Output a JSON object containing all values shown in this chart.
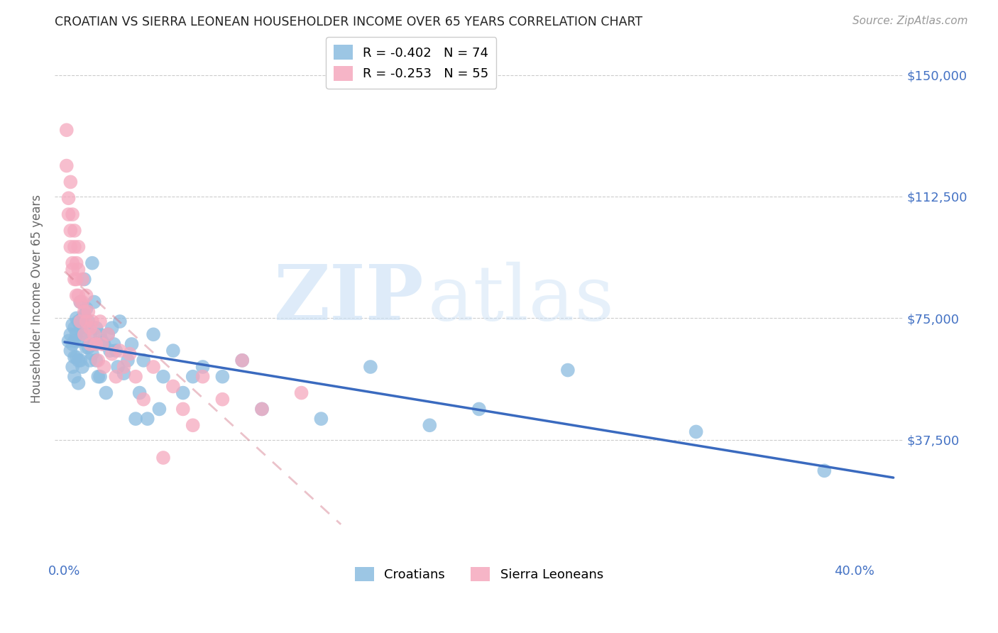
{
  "title": "CROATIAN VS SIERRA LEONEAN HOUSEHOLDER INCOME OVER 65 YEARS CORRELATION CHART",
  "source": "Source: ZipAtlas.com",
  "ylabel": "Householder Income Over 65 years",
  "xlabel_ticks": [
    "0.0%",
    "",
    "",
    "",
    "",
    "",
    "",
    "",
    "40.0%"
  ],
  "xlabel_vals": [
    0.0,
    0.05,
    0.1,
    0.15,
    0.2,
    0.25,
    0.3,
    0.35,
    0.4
  ],
  "ytick_labels": [
    "$37,500",
    "$75,000",
    "$112,500",
    "$150,000"
  ],
  "ytick_vals": [
    37500,
    75000,
    112500,
    150000
  ],
  "ylim": [
    0,
    162000
  ],
  "xlim": [
    -0.005,
    0.425
  ],
  "croatian_R": -0.402,
  "croatian_N": 74,
  "sierraleone_R": -0.253,
  "sierraleone_N": 55,
  "croatian_color": "#8bbce0",
  "sierraleone_color": "#f5a8be",
  "trendline_croatian_color": "#3a6abf",
  "trendline_sierraleone_color": "#d4788a",
  "watermark_zip": "ZIP",
  "watermark_atlas": "atlas",
  "background_color": "#ffffff",
  "grid_color": "#cccccc",
  "title_color": "#222222",
  "label_color": "#4472c4",
  "croatian_x": [
    0.002,
    0.003,
    0.003,
    0.004,
    0.004,
    0.004,
    0.005,
    0.005,
    0.005,
    0.005,
    0.006,
    0.006,
    0.006,
    0.007,
    0.007,
    0.007,
    0.007,
    0.008,
    0.008,
    0.008,
    0.009,
    0.009,
    0.009,
    0.01,
    0.01,
    0.011,
    0.011,
    0.012,
    0.012,
    0.013,
    0.013,
    0.014,
    0.014,
    0.015,
    0.015,
    0.016,
    0.016,
    0.017,
    0.018,
    0.018,
    0.019,
    0.02,
    0.021,
    0.022,
    0.023,
    0.024,
    0.025,
    0.026,
    0.027,
    0.028,
    0.03,
    0.032,
    0.034,
    0.036,
    0.038,
    0.04,
    0.042,
    0.045,
    0.048,
    0.05,
    0.055,
    0.06,
    0.065,
    0.07,
    0.08,
    0.09,
    0.1,
    0.13,
    0.155,
    0.185,
    0.21,
    0.255,
    0.32,
    0.385
  ],
  "croatian_y": [
    68000,
    70000,
    65000,
    73000,
    67000,
    60000,
    72000,
    68000,
    63000,
    57000,
    75000,
    70000,
    63000,
    74000,
    68000,
    62000,
    55000,
    80000,
    72000,
    62000,
    75000,
    70000,
    60000,
    87000,
    76000,
    78000,
    66000,
    74000,
    66000,
    70000,
    62000,
    92000,
    64000,
    80000,
    67000,
    72000,
    62000,
    57000,
    70000,
    57000,
    68000,
    67000,
    52000,
    70000,
    65000,
    72000,
    67000,
    65000,
    60000,
    74000,
    58000,
    62000,
    67000,
    44000,
    52000,
    62000,
    44000,
    70000,
    47000,
    57000,
    65000,
    52000,
    57000,
    60000,
    57000,
    62000,
    47000,
    44000,
    60000,
    42000,
    47000,
    59000,
    40000,
    28000
  ],
  "sierraleone_x": [
    0.001,
    0.001,
    0.002,
    0.002,
    0.003,
    0.003,
    0.003,
    0.004,
    0.004,
    0.004,
    0.005,
    0.005,
    0.005,
    0.006,
    0.006,
    0.006,
    0.007,
    0.007,
    0.007,
    0.008,
    0.008,
    0.009,
    0.009,
    0.01,
    0.01,
    0.011,
    0.011,
    0.012,
    0.013,
    0.013,
    0.014,
    0.015,
    0.016,
    0.017,
    0.018,
    0.019,
    0.02,
    0.022,
    0.024,
    0.026,
    0.028,
    0.03,
    0.033,
    0.036,
    0.04,
    0.045,
    0.05,
    0.055,
    0.06,
    0.065,
    0.07,
    0.08,
    0.09,
    0.1,
    0.12
  ],
  "sierraleone_y": [
    133000,
    122000,
    112000,
    107000,
    117000,
    102000,
    97000,
    92000,
    107000,
    90000,
    102000,
    97000,
    87000,
    92000,
    87000,
    82000,
    97000,
    90000,
    82000,
    80000,
    74000,
    87000,
    80000,
    77000,
    70000,
    82000,
    74000,
    77000,
    72000,
    67000,
    74000,
    70000,
    67000,
    62000,
    74000,
    67000,
    60000,
    70000,
    64000,
    57000,
    65000,
    60000,
    64000,
    57000,
    50000,
    60000,
    32000,
    54000,
    47000,
    42000,
    57000,
    50000,
    62000,
    47000,
    52000
  ],
  "trendline_cr_x0": 0.0,
  "trendline_cr_x1": 0.42,
  "trendline_sl_x0": 0.0,
  "trendline_sl_x1": 0.14
}
